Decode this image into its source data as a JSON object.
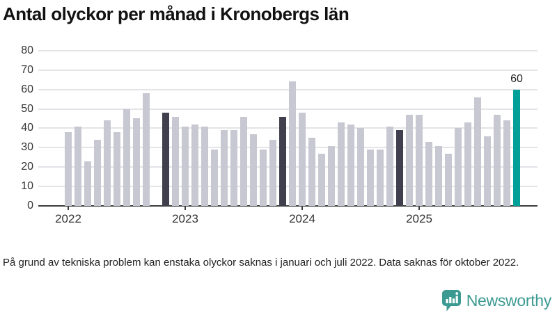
{
  "title": "Antal olyckor per månad i Kronobergs län",
  "footnote": "På grund av tekniska problem kan enstaka olyckor saknas i januari och juli 2022. Data saknas för oktober 2022.",
  "branding": {
    "logo_text": "Newsworthy",
    "logo_icon": "newsworthy-speech-bubble-bar-chart-icon"
  },
  "colors": {
    "bar_normal": "#c8c8d2",
    "bar_compare": "#3f3f4d",
    "bar_latest": "#00a099",
    "grid": "#e4e4e8",
    "axis": "#3d3d3d",
    "axis_text": "#333333",
    "title_text": "#121212",
    "logo_teal": "#3b9a91"
  },
  "chart_data": {
    "type": "bar",
    "title": "Antal olyckor per månad i Kronobergs län",
    "xlabel": "",
    "ylabel": "",
    "ylim": [
      0,
      80
    ],
    "y_ticks": [
      0,
      10,
      20,
      30,
      40,
      50,
      60,
      70,
      80
    ],
    "x_tick_labels": [
      "2022",
      "2023",
      "2024",
      "2025"
    ],
    "grid": true,
    "legend": false,
    "missing_months": [
      "2022-10"
    ],
    "compare_months": [
      "2022-11",
      "2023-11",
      "2024-11"
    ],
    "latest_month": "2025-11",
    "value_label": {
      "text": "60",
      "month": "2025-11"
    },
    "points": [
      {
        "month": "2022-01",
        "value": 38
      },
      {
        "month": "2022-02",
        "value": 41
      },
      {
        "month": "2022-03",
        "value": 23
      },
      {
        "month": "2022-04",
        "value": 34
      },
      {
        "month": "2022-05",
        "value": 44
      },
      {
        "month": "2022-06",
        "value": 38
      },
      {
        "month": "2022-07",
        "value": 50
      },
      {
        "month": "2022-08",
        "value": 45
      },
      {
        "month": "2022-09",
        "value": 58
      },
      {
        "month": "2022-10",
        "value": null
      },
      {
        "month": "2022-11",
        "value": 48
      },
      {
        "month": "2022-12",
        "value": 46
      },
      {
        "month": "2023-01",
        "value": 41
      },
      {
        "month": "2023-02",
        "value": 42
      },
      {
        "month": "2023-03",
        "value": 41
      },
      {
        "month": "2023-04",
        "value": 29
      },
      {
        "month": "2023-05",
        "value": 39
      },
      {
        "month": "2023-06",
        "value": 39
      },
      {
        "month": "2023-07",
        "value": 46
      },
      {
        "month": "2023-08",
        "value": 37
      },
      {
        "month": "2023-09",
        "value": 29
      },
      {
        "month": "2023-10",
        "value": 34
      },
      {
        "month": "2023-11",
        "value": 46
      },
      {
        "month": "2023-12",
        "value": 64
      },
      {
        "month": "2024-01",
        "value": 48
      },
      {
        "month": "2024-02",
        "value": 35
      },
      {
        "month": "2024-03",
        "value": 27
      },
      {
        "month": "2024-04",
        "value": 31
      },
      {
        "month": "2024-05",
        "value": 43
      },
      {
        "month": "2024-06",
        "value": 42
      },
      {
        "month": "2024-07",
        "value": 40
      },
      {
        "month": "2024-08",
        "value": 29
      },
      {
        "month": "2024-09",
        "value": 29
      },
      {
        "month": "2024-10",
        "value": 41
      },
      {
        "month": "2024-11",
        "value": 39
      },
      {
        "month": "2024-12",
        "value": 47
      },
      {
        "month": "2025-01",
        "value": 47
      },
      {
        "month": "2025-02",
        "value": 33
      },
      {
        "month": "2025-03",
        "value": 31
      },
      {
        "month": "2025-04",
        "value": 27
      },
      {
        "month": "2025-05",
        "value": 40
      },
      {
        "month": "2025-06",
        "value": 43
      },
      {
        "month": "2025-07",
        "value": 56
      },
      {
        "month": "2025-08",
        "value": 36
      },
      {
        "month": "2025-09",
        "value": 47
      },
      {
        "month": "2025-10",
        "value": 44
      },
      {
        "month": "2025-11",
        "value": 60
      }
    ]
  }
}
